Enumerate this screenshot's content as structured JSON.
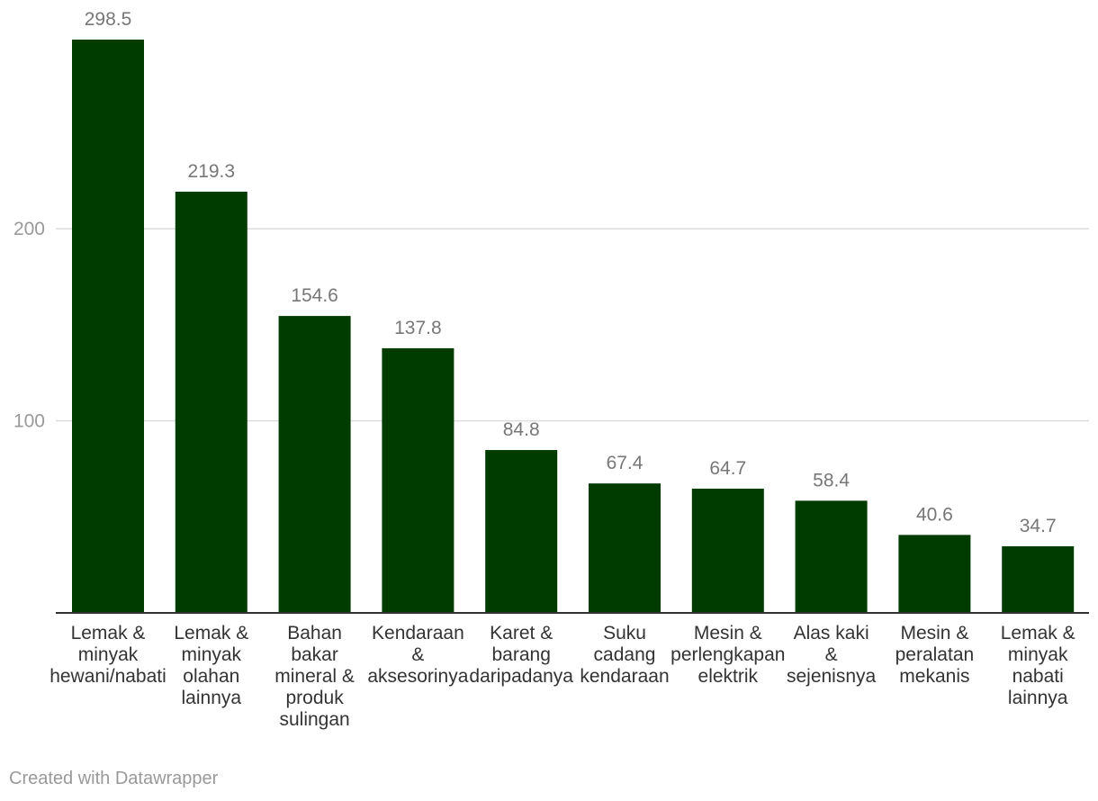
{
  "chart_data": {
    "type": "bar",
    "categories": [
      [
        "Lemak &",
        "minyak",
        "hewani/nabati"
      ],
      [
        "Lemak &",
        "minyak",
        "olahan",
        "lainnya"
      ],
      [
        "Bahan",
        "bakar",
        "mineral &",
        "produk",
        "sulingan"
      ],
      [
        "Kendaraan",
        "&",
        "aksesorinya"
      ],
      [
        "Karet &",
        "barang",
        "daripadanya"
      ],
      [
        "Suku",
        "cadang",
        "kendaraan"
      ],
      [
        "Mesin &",
        "perlengkapan",
        "elektrik"
      ],
      [
        "Alas kaki",
        "&",
        "sejenisnya"
      ],
      [
        "Mesin &",
        "peralatan",
        "mekanis"
      ],
      [
        "Lemak &",
        "minyak",
        "nabati",
        "lainnya"
      ]
    ],
    "values": [
      298.5,
      219.3,
      154.6,
      137.8,
      84.8,
      67.4,
      64.7,
      58.4,
      40.6,
      34.7
    ],
    "value_labels": [
      "298.5",
      "219.3",
      "154.6",
      "137.8",
      "84.8",
      "67.4",
      "64.7",
      "58.4",
      "40.6",
      "34.7"
    ],
    "yticks": [
      100,
      200
    ],
    "ytick_labels": [
      "100",
      "200"
    ],
    "ylim": [
      0,
      298.5
    ],
    "title": "",
    "xlabel": "",
    "ylabel": "",
    "grid": true
  },
  "colors": {
    "bar": "#003b00",
    "grid": "#dddddd",
    "axis": "#333333",
    "tick_label": "#999999",
    "value_label": "#777777",
    "category_label": "#333333"
  },
  "footer": {
    "credit": "Created with Datawrapper"
  }
}
